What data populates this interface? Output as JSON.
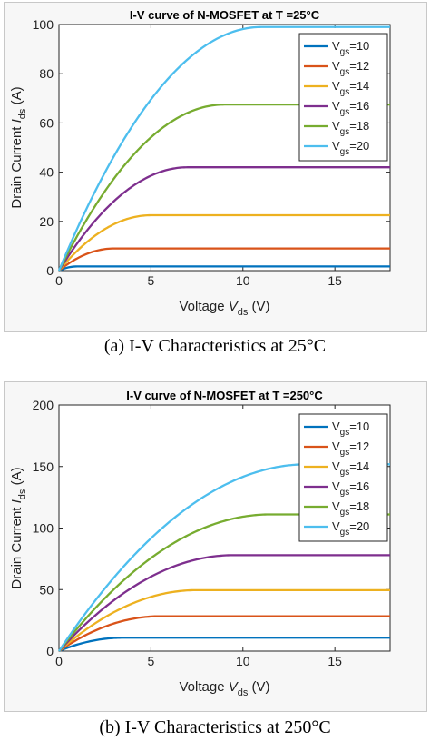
{
  "colors": {
    "vgs10": "#0072BD",
    "vgs12": "#D95319",
    "vgs14": "#EDB120",
    "vgs16": "#7E2F8E",
    "vgs18": "#77AC30",
    "vgs20": "#4DBEEE"
  },
  "chart_data": [
    {
      "type": "line",
      "title": "I-V curve of N-MOSFET at T =25°C",
      "xlabel_main": "Voltage",
      "xlabel_var": "V",
      "xlabel_sub": "ds",
      "xlabel_unit": "(V)",
      "ylabel_main": "Drain Current",
      "ylabel_var": "I",
      "ylabel_sub": "ds",
      "ylabel_unit": "(A)",
      "xlim": [
        0,
        18
      ],
      "ylim": [
        0,
        100
      ],
      "xticks": [
        "0",
        "5",
        "10",
        "15"
      ],
      "yticks": [
        "0",
        "20",
        "40",
        "60",
        "80",
        "100"
      ],
      "grid": false,
      "legend_position": "top-right",
      "series": [
        {
          "name_main": "V",
          "name_sub": "gs",
          "name_val": "=10",
          "vth": 9.0,
          "k": 1.7,
          "color_key": "vgs10"
        },
        {
          "name_main": "V",
          "name_sub": "gs",
          "name_val": "=12",
          "vth": 9.0,
          "k": 1.0,
          "color_key": "vgs12"
        },
        {
          "name_main": "V",
          "name_sub": "gs",
          "name_val": "=14",
          "vth": 9.0,
          "k": 0.9,
          "color_key": "vgs14"
        },
        {
          "name_main": "V",
          "name_sub": "gs",
          "name_val": "=16",
          "vth": 9.0,
          "k": 0.857,
          "color_key": "vgs16"
        },
        {
          "name_main": "V",
          "name_sub": "gs",
          "name_val": "=18",
          "vth": 9.0,
          "k": 0.833,
          "color_key": "vgs18"
        },
        {
          "name_main": "V",
          "name_sub": "gs",
          "name_val": "=20",
          "vth": 9.0,
          "k": 0.818,
          "color_key": "vgs20"
        }
      ],
      "caption": "(a) I-V Characteristics at 25°C"
    },
    {
      "type": "line",
      "title": "I-V curve of N-MOSFET at T =250°C",
      "xlabel_main": "Voltage",
      "xlabel_var": "V",
      "xlabel_sub": "ds",
      "xlabel_unit": "(V)",
      "ylabel_main": "Drain Current",
      "ylabel_var": "I",
      "ylabel_sub": "ds",
      "ylabel_unit": "(A)",
      "xlim": [
        0,
        18
      ],
      "ylim": [
        0,
        200
      ],
      "xticks": [
        "0",
        "5",
        "10",
        "15"
      ],
      "yticks": [
        "0",
        "50",
        "100",
        "150",
        "200"
      ],
      "grid": false,
      "legend_position": "top-right",
      "series": [
        {
          "name_main": "V",
          "name_sub": "gs",
          "name_val": "=10",
          "vth": 6.5,
          "k": 0.889,
          "color_key": "vgs10"
        },
        {
          "name_main": "V",
          "name_sub": "gs",
          "name_val": "=12",
          "vth": 6.5,
          "k": 0.937,
          "color_key": "vgs12"
        },
        {
          "name_main": "V",
          "name_sub": "gs",
          "name_val": "=14",
          "vth": 6.5,
          "k": 0.881,
          "color_key": "vgs14"
        },
        {
          "name_main": "V",
          "name_sub": "gs",
          "name_val": "=16",
          "vth": 6.5,
          "k": 0.864,
          "color_key": "vgs16"
        },
        {
          "name_main": "V",
          "name_sub": "gs",
          "name_val": "=18",
          "vth": 6.5,
          "k": 0.84,
          "color_key": "vgs18"
        },
        {
          "name_main": "V",
          "name_sub": "gs",
          "name_val": "=20",
          "vth": 6.5,
          "k": 0.833,
          "color_key": "vgs20"
        }
      ],
      "caption": "(b) I-V Characteristics at 250°C"
    }
  ]
}
